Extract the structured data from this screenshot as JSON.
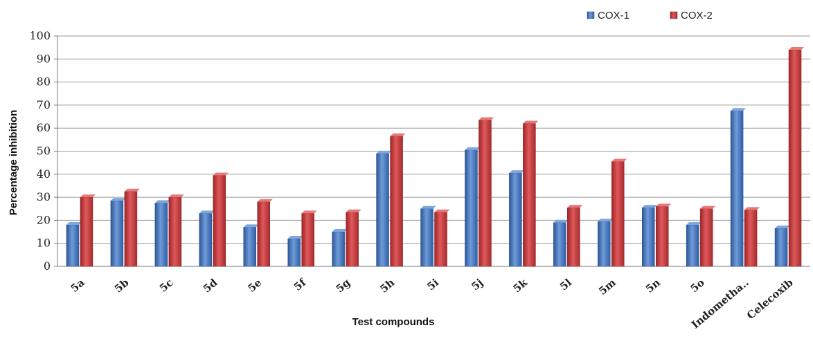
{
  "chart_data": {
    "type": "bar",
    "title": "",
    "xlabel": "Test compounds",
    "ylabel": "Percentage inhibition",
    "ylim": [
      0,
      100
    ],
    "yticks": [
      0,
      10,
      20,
      30,
      40,
      50,
      60,
      70,
      80,
      90,
      100
    ],
    "grid": true,
    "legend_position": "top-right",
    "categories": [
      "5a",
      "5b",
      "5c",
      "5d",
      "5e",
      "5f",
      "5g",
      "5h",
      "5i",
      "5j",
      "5k",
      "5l",
      "5m",
      "5n",
      "5o",
      "Indometha..",
      "Celecoxib"
    ],
    "series": [
      {
        "name": "COX-1",
        "color": "#3f6fb4",
        "values": [
          18,
          28.5,
          27.5,
          23,
          17,
          12,
          15,
          49,
          25,
          50.5,
          40.5,
          19,
          19.5,
          25.5,
          18,
          67.5,
          16.5
        ]
      },
      {
        "name": "COX-2",
        "color": "#c0393b",
        "values": [
          30,
          32.5,
          30,
          39.5,
          28,
          23,
          23.5,
          56.5,
          23.5,
          63.5,
          62,
          25.5,
          45.5,
          26,
          25,
          24.5,
          94
        ]
      }
    ]
  }
}
